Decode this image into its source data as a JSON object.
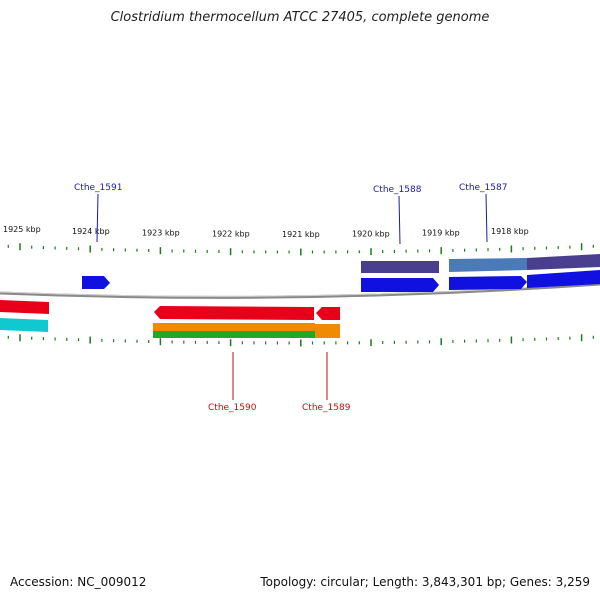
{
  "title": "Clostridium thermocellum ATCC 27405, complete genome",
  "accession_text": "Accession: NC_009012",
  "summary_text": "Topology: circular; Length: 3,843,301 bp; Genes: 3,259",
  "ruler": {
    "labels": [
      "1925 kbp",
      "1924 kbp",
      "1923 kbp",
      "1922 kbp",
      "1921 kbp",
      "1920 kbp",
      "1919 kbp",
      "1918 kbp"
    ]
  },
  "gene_labels": {
    "plus": [
      "Cthe_1591",
      "Cthe_1588",
      "Cthe_1587"
    ],
    "minus": [
      "Cthe_1590",
      "Cthe_1589"
    ]
  },
  "colors": {
    "backbone": "#8a8a8a",
    "tick": "#1e7a1e",
    "plus_label": "#1a1aa8",
    "minus_label": "#c01010",
    "cds_blue": "#1010e0",
    "feature_purple": "#4a3f8f",
    "feature_steel": "#4a7ab8",
    "cds_red": "#e8001a",
    "feature_orange": "#f08a00",
    "feature_green": "#22a822",
    "feature_cyan": "#10c8d0"
  }
}
